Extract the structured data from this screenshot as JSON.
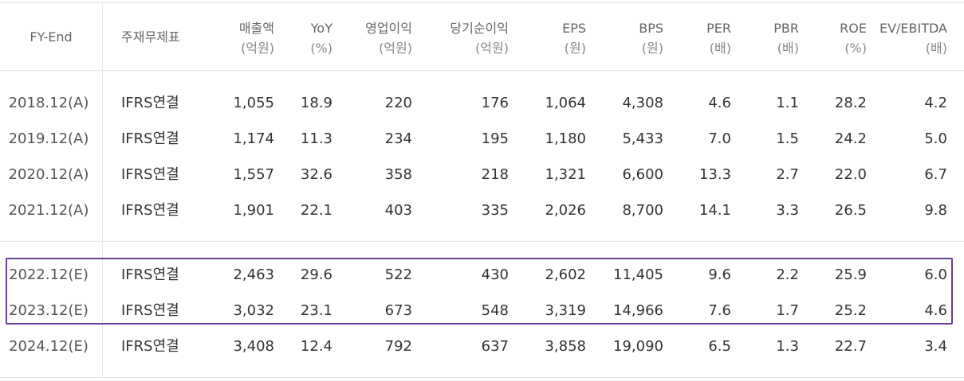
{
  "headers": [
    {
      "line1": "FY-End",
      "line2": ""
    },
    {
      "line1": "주재무제표",
      "line2": ""
    },
    {
      "line1": "매출액",
      "line2": "(억원)"
    },
    {
      "line1": "YoY",
      "line2": "(%)"
    },
    {
      "line1": "영업이익",
      "line2": "(억원)"
    },
    {
      "line1": "당기순이익",
      "line2": "(억원)"
    },
    {
      "line1": "EPS",
      "line2": "(원)"
    },
    {
      "line1": "BPS",
      "line2": "(원)"
    },
    {
      "line1": "PER",
      "line2": "(배)"
    },
    {
      "line1": "PBR",
      "line2": "(배)"
    },
    {
      "line1": "ROE",
      "line2": "(%)"
    },
    {
      "line1": "EV/EBITDA",
      "line2": "(배)"
    }
  ],
  "rows": [
    [
      "2018.12(A)",
      "IFRS연결",
      "1,055",
      "18.9",
      "220",
      "176",
      "1,064",
      "4,308",
      "4.6",
      "1.1",
      "28.2",
      "4.2"
    ],
    [
      "2019.12(A)",
      "IFRS연결",
      "1,174",
      "11.3",
      "234",
      "195",
      "1,180",
      "5,433",
      "7.0",
      "1.5",
      "24.2",
      "5.0"
    ],
    [
      "2020.12(A)",
      "IFRS연결",
      "1,557",
      "32.6",
      "358",
      "218",
      "1,321",
      "6,600",
      "13.3",
      "2.7",
      "22.0",
      "6.7"
    ],
    [
      "2021.12(A)",
      "IFRS연결",
      "1,901",
      "22.1",
      "403",
      "335",
      "2,026",
      "8,700",
      "14.1",
      "3.3",
      "26.5",
      "9.8"
    ],
    [
      "2022.12(E)",
      "IFRS연결",
      "2,463",
      "29.6",
      "522",
      "430",
      "2,602",
      "11,405",
      "9.6",
      "2.2",
      "25.9",
      "6.0"
    ],
    [
      "2023.12(E)",
      "IFRS연결",
      "3,032",
      "23.1",
      "673",
      "548",
      "3,319",
      "14,966",
      "7.6",
      "1.7",
      "25.2",
      "4.6"
    ],
    [
      "2024.12(E)",
      "IFRS연결",
      "3,408",
      "12.4",
      "792",
      "637",
      "3,858",
      "19,090",
      "6.5",
      "1.3",
      "22.7",
      "3.4"
    ]
  ],
  "highlight_color": "#6a3d9a"
}
